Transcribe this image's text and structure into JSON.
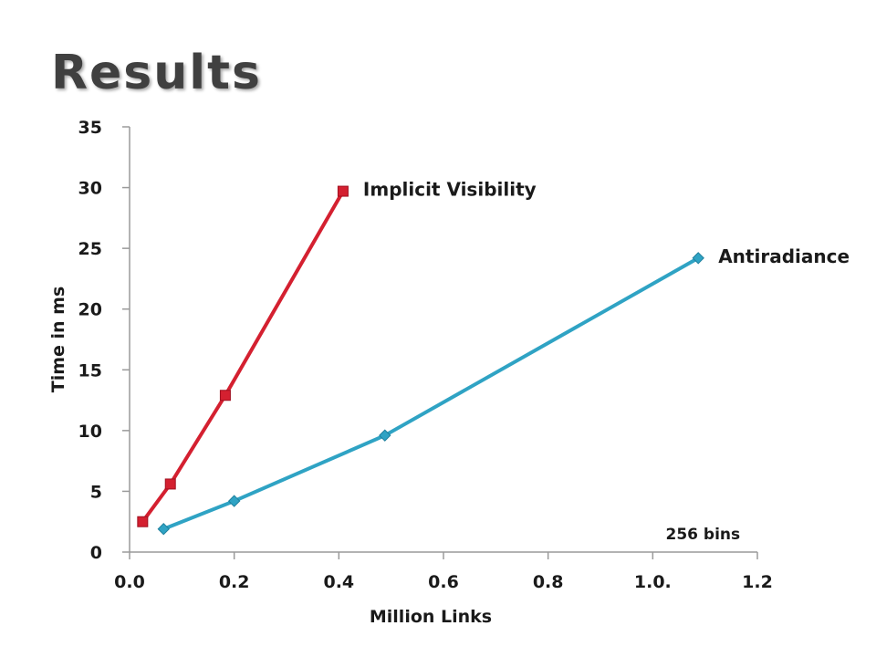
{
  "slide": {
    "title": "Results"
  },
  "chart_data": {
    "type": "line",
    "title": "",
    "xlabel": "Million Links",
    "ylabel": "Time in ms",
    "xlim": [
      0,
      1.2
    ],
    "ylim": [
      0,
      35
    ],
    "x_ticks": [
      {
        "value": 0.0,
        "label": "0.0"
      },
      {
        "value": 0.2,
        "label": "0.2"
      },
      {
        "value": 0.4,
        "label": "0.4"
      },
      {
        "value": 0.6,
        "label": "0.6"
      },
      {
        "value": 0.8,
        "label": "0.8"
      },
      {
        "value": 1.0,
        "label": "1.0."
      },
      {
        "value": 1.2,
        "label": "1.2"
      }
    ],
    "y_ticks": [
      {
        "value": 0,
        "label": "0"
      },
      {
        "value": 5,
        "label": "5"
      },
      {
        "value": 10,
        "label": "10"
      },
      {
        "value": 15,
        "label": "15"
      },
      {
        "value": 20,
        "label": "20"
      },
      {
        "value": 25,
        "label": "25"
      },
      {
        "value": 30,
        "label": "30"
      },
      {
        "value": 35,
        "label": "35"
      }
    ],
    "grid": false,
    "legend": "none",
    "series": [
      {
        "name": "Implicit Visibility",
        "color": "#d42030",
        "marker": "square",
        "points": [
          {
            "x": 0.025,
            "y": 2.5
          },
          {
            "x": 0.078,
            "y": 5.6
          },
          {
            "x": 0.183,
            "y": 12.9
          },
          {
            "x": 0.408,
            "y": 29.7
          }
        ]
      },
      {
        "name": "Antiradiance",
        "color": "#2fa3c4",
        "marker": "diamond",
        "points": [
          {
            "x": 0.065,
            "y": 1.9
          },
          {
            "x": 0.2,
            "y": 4.2
          },
          {
            "x": 0.488,
            "y": 9.6
          },
          {
            "x": 1.087,
            "y": 24.2
          }
        ]
      }
    ],
    "annotations": [
      {
        "text": "256 bins",
        "x": 1.0,
        "y": 1.2
      }
    ]
  }
}
